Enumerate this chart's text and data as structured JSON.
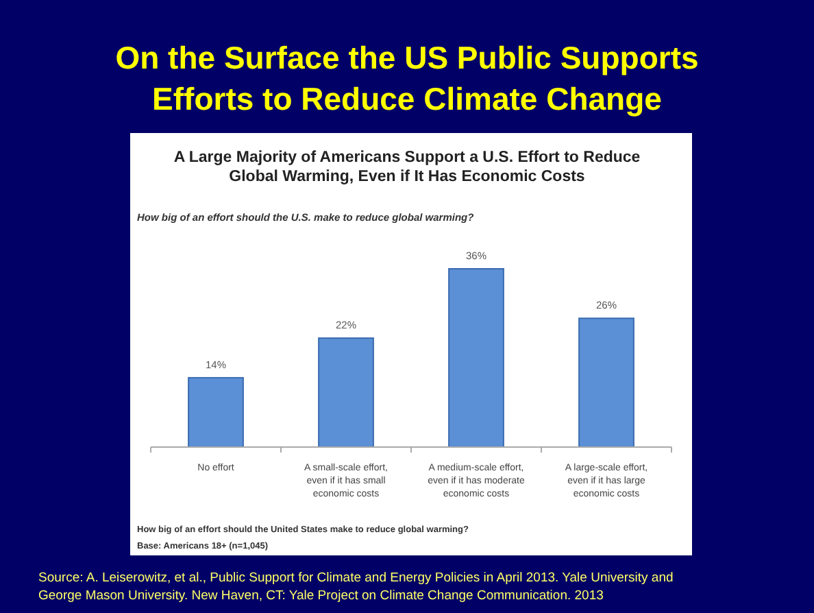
{
  "chart_data": {
    "type": "bar",
    "title": "On the Surface the US Public Supports Efforts to Reduce Climate Change",
    "subtitle": "A Large Majority of Americans Support a U.S. Effort to Reduce Global Warming, Even if It Has Economic Costs",
    "categories": [
      "No effort",
      "A small-scale effort, even if it has small economic costs",
      "A medium-scale effort, even if it has moderate economic costs",
      "A large-scale effort, even if it has large economic costs"
    ],
    "values": [
      14,
      22,
      36,
      26
    ],
    "value_labels": [
      "14%",
      "22%",
      "36%",
      "26%"
    ],
    "color": "#5b8fd6",
    "annotations": [
      "How big of an effort should the U.S. make to reduce global warming?",
      "How big of an effort should the United States make to reduce global warming?",
      "Base: Americans 18+ (n=1,045)",
      "Source: A. Leiserowitz, et al., Public Support for Climate and Energy Policies in April 2013. Yale University and George Mason University. New Haven, CT: Yale Project on Climate Change Communication. 2013"
    ]
  }
}
